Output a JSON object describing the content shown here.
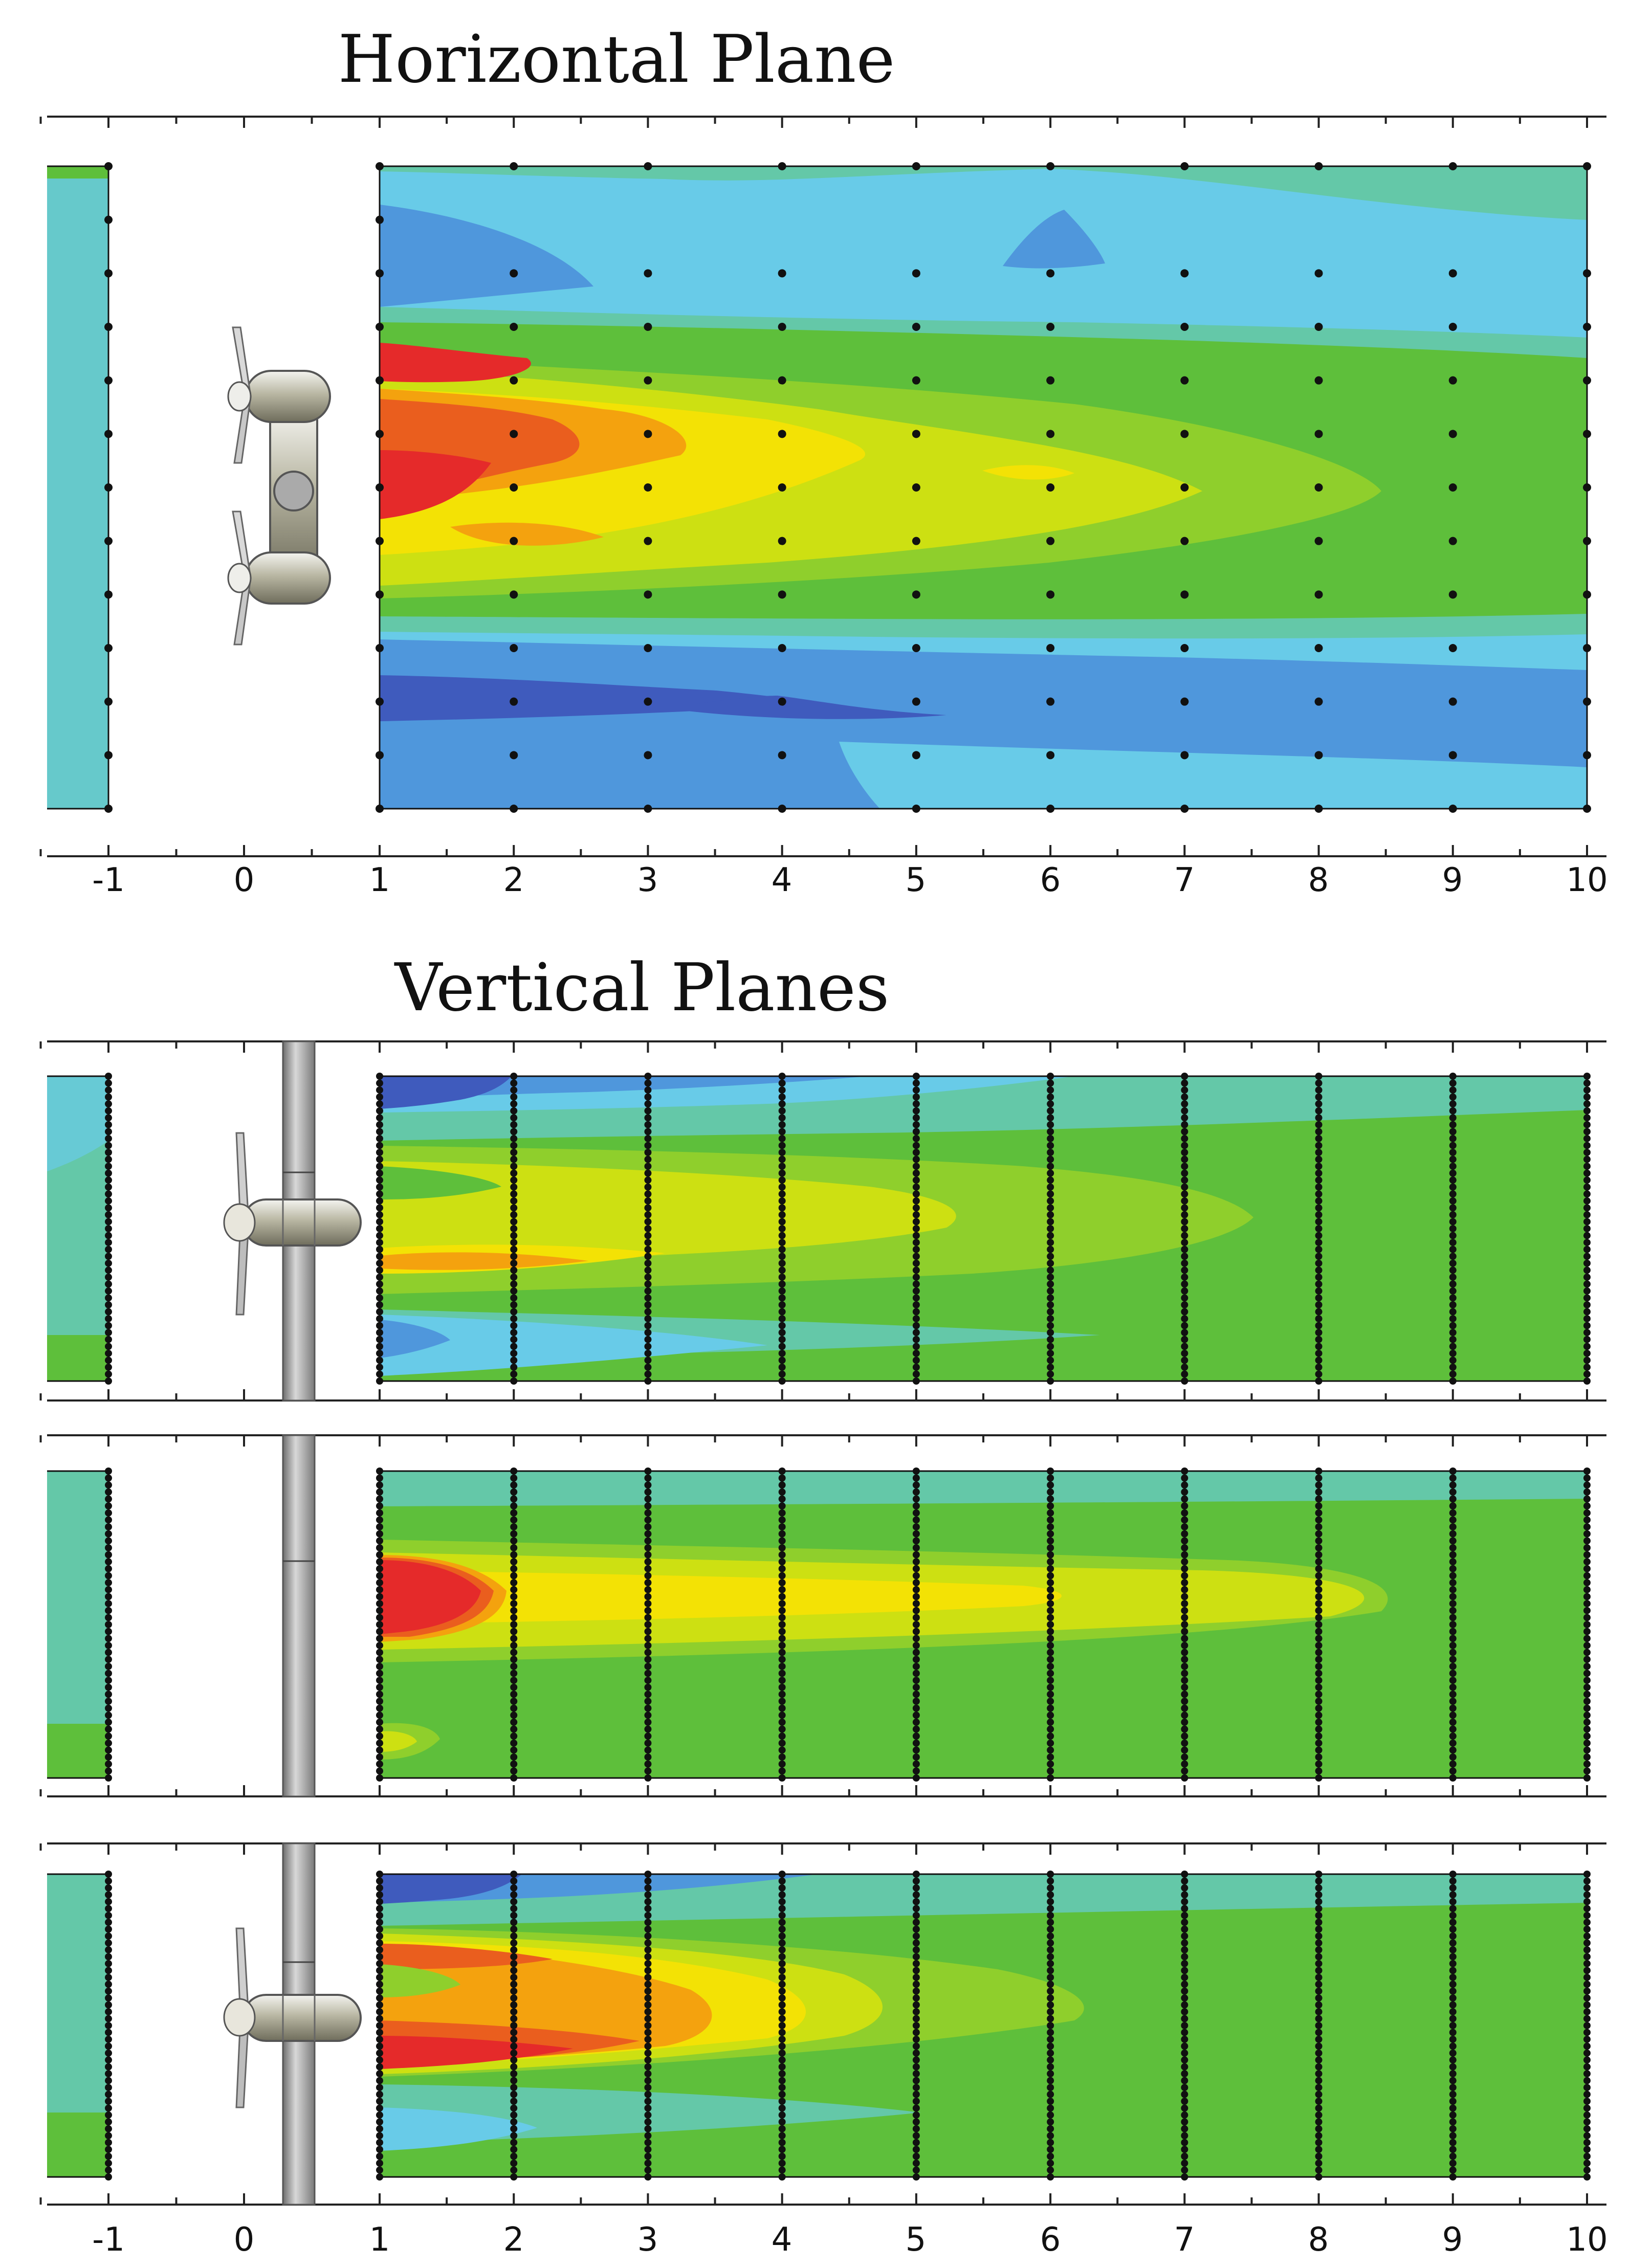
{
  "titles": {
    "horizontal": "Horizontal Plane",
    "vertical": "Vertical Planes"
  },
  "axis": {
    "ticks": [
      "-1",
      "0",
      "1",
      "2",
      "3",
      "4",
      "5",
      "6",
      "7",
      "8",
      "9",
      "10"
    ],
    "x_min": -1.5,
    "x_max": 10.15
  },
  "contour_palette": {
    "dark_blue": "#3f5bbd",
    "mid_blue": "#4f97dc",
    "light_blue": "#68cbe8",
    "teal": "#64c8a8",
    "green": "#5ebf3b",
    "light_green": "#8fcf2c",
    "yellow_green": "#cde012",
    "yellow": "#f3e205",
    "orange": "#f4a20e",
    "dark_orange": "#ea5e1e",
    "red": "#e52a2a"
  },
  "probe_stations": [
    -1,
    1,
    2,
    3,
    4,
    5,
    6,
    7,
    8,
    9,
    10
  ]
}
